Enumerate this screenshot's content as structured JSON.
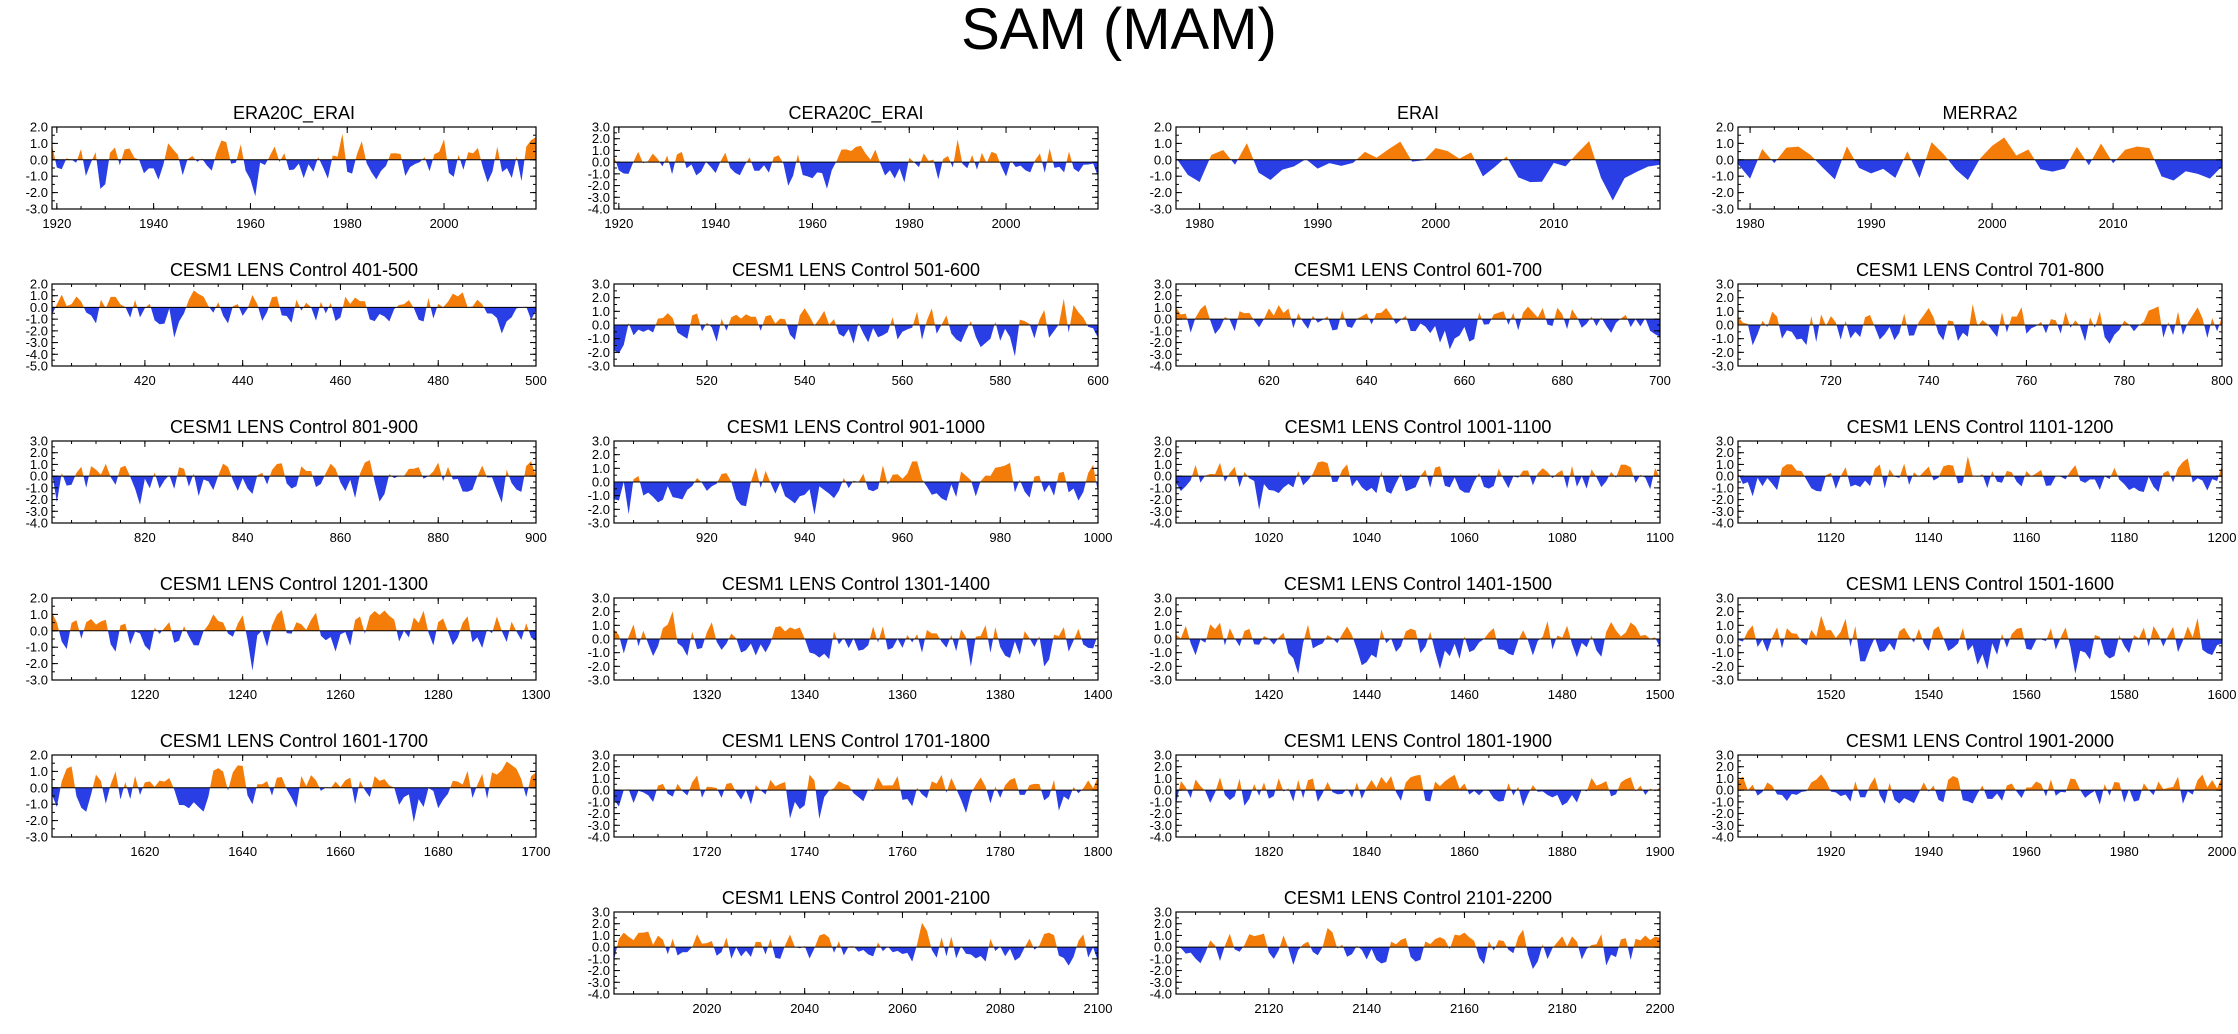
{
  "title": "SAM (MAM)",
  "colors": {
    "positive": "#f47d0a",
    "negative": "#2a3ee6",
    "axis": "#000000"
  },
  "chart_data": [
    {
      "type": "area",
      "title": "ERA20C_ERAI",
      "x_range": [
        1919,
        2019
      ],
      "x_ticks": [
        1920,
        1940,
        1960,
        1980,
        2000
      ],
      "y_range": [
        -3.0,
        2.0
      ],
      "y_tick_labels": [
        "2.0",
        "1.0",
        "0.0",
        "-1.0",
        "-2.0",
        "-3.0"
      ],
      "seed": 11,
      "values_note": "annual SAM index, orange above zero, blue below"
    },
    {
      "type": "area",
      "title": "CERA20C_ERAI",
      "x_range": [
        1919,
        2019
      ],
      "x_ticks": [
        1920,
        1940,
        1960,
        1980,
        2000
      ],
      "y_range": [
        -4.0,
        3.0
      ],
      "y_tick_labels": [
        "3.0",
        "2.0",
        "1.0",
        "0.0",
        "-1.0",
        "-2.0",
        "-3.0",
        "-4.0"
      ],
      "seed": 12
    },
    {
      "type": "area",
      "title": "ERAI",
      "x_range": [
        1978,
        2019
      ],
      "x_ticks": [
        1980,
        1990,
        2000,
        2010
      ],
      "y_range": [
        -3.0,
        2.0
      ],
      "y_tick_labels": [
        "2.0",
        "1.0",
        "0.0",
        "-1.0",
        "-2.0",
        "-3.0"
      ],
      "seed": 13
    },
    {
      "type": "area",
      "title": "MERRA2",
      "x_range": [
        1979,
        2019
      ],
      "x_ticks": [
        1980,
        1990,
        2000,
        2010
      ],
      "y_range": [
        -3.0,
        2.0
      ],
      "y_tick_labels": [
        "2.0",
        "1.0",
        "0.0",
        "-1.0",
        "-2.0",
        "-3.0"
      ],
      "seed": 14
    },
    {
      "type": "area",
      "title": "CESM1 LENS Control 401-500",
      "x_range": [
        401,
        500
      ],
      "x_ticks": [
        420,
        440,
        460,
        480,
        500
      ],
      "y_range": [
        -5.0,
        2.0
      ],
      "y_tick_labels": [
        "2.0",
        "1.0",
        "0.0",
        "-1.0",
        "-2.0",
        "-3.0",
        "-4.0",
        "-5.0"
      ],
      "seed": 21
    },
    {
      "type": "area",
      "title": "CESM1 LENS Control 501-600",
      "x_range": [
        501,
        600
      ],
      "x_ticks": [
        520,
        540,
        560,
        580,
        600
      ],
      "y_range": [
        -3.0,
        3.0
      ],
      "y_tick_labels": [
        "3.0",
        "2.0",
        "1.0",
        "0.0",
        "-1.0",
        "-2.0",
        "-3.0"
      ],
      "seed": 22
    },
    {
      "type": "area",
      "title": "CESM1 LENS Control 601-700",
      "x_range": [
        601,
        700
      ],
      "x_ticks": [
        620,
        640,
        660,
        680,
        700
      ],
      "y_range": [
        -4.0,
        3.0
      ],
      "y_tick_labels": [
        "3.0",
        "2.0",
        "1.0",
        "0.0",
        "-1.0",
        "-2.0",
        "-3.0",
        "-4.0"
      ],
      "seed": 23
    },
    {
      "type": "area",
      "title": "CESM1 LENS Control 701-800",
      "x_range": [
        701,
        800
      ],
      "x_ticks": [
        720,
        740,
        760,
        780,
        800
      ],
      "y_range": [
        -3.0,
        3.0
      ],
      "y_tick_labels": [
        "3.0",
        "2.0",
        "1.0",
        "0.0",
        "-1.0",
        "-2.0",
        "-3.0"
      ],
      "seed": 24
    },
    {
      "type": "area",
      "title": "CESM1 LENS Control 801-900",
      "x_range": [
        801,
        900
      ],
      "x_ticks": [
        820,
        840,
        860,
        880,
        900
      ],
      "y_range": [
        -4.0,
        3.0
      ],
      "y_tick_labels": [
        "3.0",
        "2.0",
        "1.0",
        "0.0",
        "-1.0",
        "-2.0",
        "-3.0",
        "-4.0"
      ],
      "seed": 31
    },
    {
      "type": "area",
      "title": "CESM1 LENS Control 901-1000",
      "x_range": [
        901,
        1000
      ],
      "x_ticks": [
        920,
        940,
        960,
        980,
        1000
      ],
      "y_range": [
        -3.0,
        3.0
      ],
      "y_tick_labels": [
        "3.0",
        "2.0",
        "1.0",
        "0.0",
        "-1.0",
        "-2.0",
        "-3.0"
      ],
      "seed": 32
    },
    {
      "type": "area",
      "title": "CESM1 LENS Control 1001-1100",
      "x_range": [
        1001,
        1100
      ],
      "x_ticks": [
        1020,
        1040,
        1060,
        1080,
        1100
      ],
      "y_range": [
        -4.0,
        3.0
      ],
      "y_tick_labels": [
        "3.0",
        "2.0",
        "1.0",
        "0.0",
        "-1.0",
        "-2.0",
        "-3.0",
        "-4.0"
      ],
      "seed": 33
    },
    {
      "type": "area",
      "title": "CESM1 LENS Control 1101-1200",
      "x_range": [
        1101,
        1200
      ],
      "x_ticks": [
        1120,
        1140,
        1160,
        1180,
        1200
      ],
      "y_range": [
        -4.0,
        3.0
      ],
      "y_tick_labels": [
        "3.0",
        "2.0",
        "1.0",
        "0.0",
        "-1.0",
        "-2.0",
        "-3.0",
        "-4.0"
      ],
      "seed": 34
    },
    {
      "type": "area",
      "title": "CESM1 LENS Control 1201-1300",
      "x_range": [
        1201,
        1300
      ],
      "x_ticks": [
        1220,
        1240,
        1260,
        1280,
        1300
      ],
      "y_range": [
        -3.0,
        2.0
      ],
      "y_tick_labels": [
        "2.0",
        "1.0",
        "0.0",
        "-1.0",
        "-2.0",
        "-3.0"
      ],
      "seed": 41
    },
    {
      "type": "area",
      "title": "CESM1 LENS Control 1301-1400",
      "x_range": [
        1301,
        1400
      ],
      "x_ticks": [
        1320,
        1340,
        1360,
        1380,
        1400
      ],
      "y_range": [
        -3.0,
        3.0
      ],
      "y_tick_labels": [
        "3.0",
        "2.0",
        "1.0",
        "0.0",
        "-1.0",
        "-2.0",
        "-3.0"
      ],
      "seed": 42
    },
    {
      "type": "area",
      "title": "CESM1 LENS Control 1401-1500",
      "x_range": [
        1401,
        1500
      ],
      "x_ticks": [
        1420,
        1440,
        1460,
        1480,
        1500
      ],
      "y_range": [
        -3.0,
        3.0
      ],
      "y_tick_labels": [
        "3.0",
        "2.0",
        "1.0",
        "0.0",
        "-1.0",
        "-2.0",
        "-3.0"
      ],
      "seed": 43
    },
    {
      "type": "area",
      "title": "CESM1 LENS Control 1501-1600",
      "x_range": [
        1501,
        1600
      ],
      "x_ticks": [
        1520,
        1540,
        1560,
        1580,
        1600
      ],
      "y_range": [
        -3.0,
        3.0
      ],
      "y_tick_labels": [
        "3.0",
        "2.0",
        "1.0",
        "0.0",
        "-1.0",
        "-2.0",
        "-3.0"
      ],
      "seed": 44
    },
    {
      "type": "area",
      "title": "CESM1 LENS Control 1601-1700",
      "x_range": [
        1601,
        1700
      ],
      "x_ticks": [
        1620,
        1640,
        1660,
        1680,
        1700
      ],
      "y_range": [
        -3.0,
        2.0
      ],
      "y_tick_labels": [
        "2.0",
        "1.0",
        "0.0",
        "-1.0",
        "-2.0",
        "-3.0"
      ],
      "seed": 51
    },
    {
      "type": "area",
      "title": "CESM1 LENS Control 1701-1800",
      "x_range": [
        1701,
        1800
      ],
      "x_ticks": [
        1720,
        1740,
        1760,
        1780,
        1800
      ],
      "y_range": [
        -4.0,
        3.0
      ],
      "y_tick_labels": [
        "3.0",
        "2.0",
        "1.0",
        "0.0",
        "-1.0",
        "-2.0",
        "-3.0",
        "-4.0"
      ],
      "seed": 52
    },
    {
      "type": "area",
      "title": "CESM1 LENS Control 1801-1900",
      "x_range": [
        1801,
        1900
      ],
      "x_ticks": [
        1820,
        1840,
        1860,
        1880,
        1900
      ],
      "y_range": [
        -4.0,
        3.0
      ],
      "y_tick_labels": [
        "3.0",
        "2.0",
        "1.0",
        "0.0",
        "-1.0",
        "-2.0",
        "-3.0",
        "-4.0"
      ],
      "seed": 53
    },
    {
      "type": "area",
      "title": "CESM1 LENS Control 1901-2000",
      "x_range": [
        1901,
        2000
      ],
      "x_ticks": [
        1920,
        1940,
        1960,
        1980,
        2000
      ],
      "y_range": [
        -4.0,
        3.0
      ],
      "y_tick_labels": [
        "3.0",
        "2.0",
        "1.0",
        "0.0",
        "-1.0",
        "-2.0",
        "-3.0",
        "-4.0"
      ],
      "seed": 54
    },
    {
      "type": "area",
      "title": "CESM1 LENS Control 2001-2100",
      "x_range": [
        2001,
        2100
      ],
      "x_ticks": [
        2020,
        2040,
        2060,
        2080,
        2100
      ],
      "y_range": [
        -4.0,
        3.0
      ],
      "y_tick_labels": [
        "3.0",
        "2.0",
        "1.0",
        "0.0",
        "-1.0",
        "-2.0",
        "-3.0",
        "-4.0"
      ],
      "seed": 61
    },
    {
      "type": "area",
      "title": "CESM1 LENS Control 2101-2200",
      "x_range": [
        2101,
        2200
      ],
      "x_ticks": [
        2120,
        2140,
        2160,
        2180,
        2200
      ],
      "y_range": [
        -4.0,
        3.0
      ],
      "y_tick_labels": [
        "3.0",
        "2.0",
        "1.0",
        "0.0",
        "-1.0",
        "-2.0",
        "-3.0",
        "-4.0"
      ],
      "seed": 62
    }
  ]
}
